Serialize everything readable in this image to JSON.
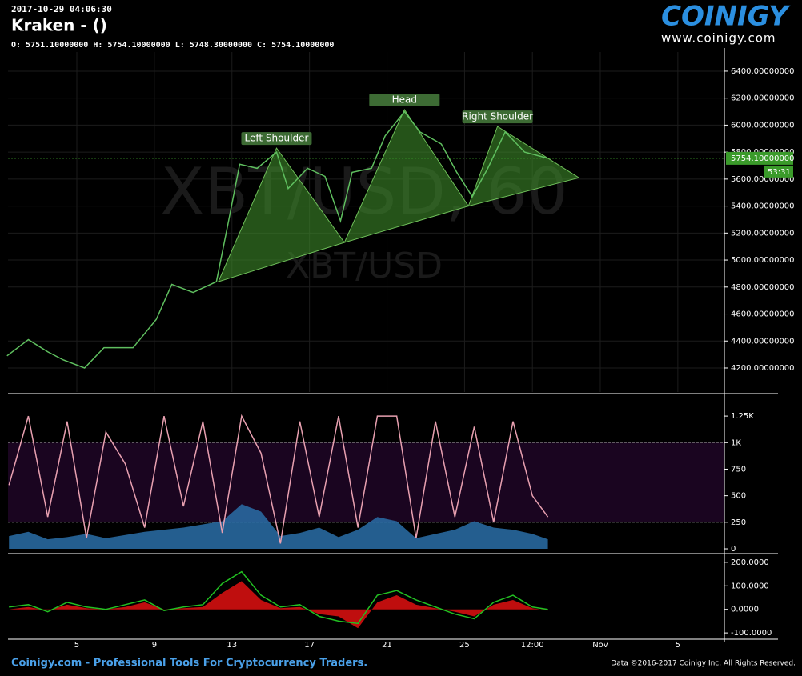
{
  "header": {
    "timestamp": "2017-10-29 04:06:30",
    "title": "Kraken -  ()",
    "ohlc": "O: 5751.10000000 H: 5754.10000000 L: 5748.30000000 C: 5754.10000000"
  },
  "logo": {
    "name": "COINIGY",
    "url": "www.coinigy.com"
  },
  "footer": {
    "left": "Coinigy.com - Professional Tools For Cryptocurrency Traders.",
    "right": "Data ©2016-2017 Coinigy Inc. All Rights Reserved."
  },
  "chart_data": [
    {
      "type": "line",
      "color": "#5fbf5f",
      "grid": true,
      "watermark": [
        "XBT/USD, 60",
        "XBT/USD"
      ],
      "x": [
        1.4,
        2.5,
        3.5,
        4.3,
        5.4,
        6.4,
        7.9,
        9.1,
        9.9,
        11.0,
        12.2,
        12.8,
        13.4,
        14.3,
        15.3,
        15.9,
        16.9,
        17.8,
        18.6,
        19.2,
        20.2,
        20.9,
        21.9,
        22.7,
        23.8,
        24.6,
        25.4,
        26.2,
        27.1,
        28.1,
        29.3
      ],
      "values": [
        4290,
        4410,
        4320,
        4260,
        4200,
        4350,
        4350,
        4560,
        4820,
        4760,
        4840,
        5270,
        5710,
        5680,
        5800,
        5530,
        5680,
        5620,
        5290,
        5650,
        5680,
        5920,
        6100,
        5950,
        5860,
        5650,
        5470,
        5680,
        5950,
        5800,
        5754
      ],
      "xlim": [
        1.45,
        38.4
      ],
      "ylim": [
        4022,
        6542
      ],
      "yticks": [
        {
          "value": 4200,
          "label": "4200.00000000"
        },
        {
          "value": 4400,
          "label": "4400.00000000"
        },
        {
          "value": 4600,
          "label": "4600.00000000"
        },
        {
          "value": 4800,
          "label": "4800.00000000"
        },
        {
          "value": 5000,
          "label": "5000.00000000"
        },
        {
          "value": 5200,
          "label": "5200.00000000"
        },
        {
          "value": 5400,
          "label": "5400.00000000"
        },
        {
          "value": 5600,
          "label": "5600.00000000"
        },
        {
          "value": 5800,
          "label": "5800.00000000"
        },
        {
          "value": 6000,
          "label": "6000.00000000"
        },
        {
          "value": 6200,
          "label": "6200.00000000"
        },
        {
          "value": 6400,
          "label": "6400.00000000"
        }
      ],
      "last_price": {
        "value": 5754.1,
        "label": "5754.10000000"
      },
      "countdown": "53:31",
      "pattern": {
        "color": "#3d8a2a",
        "x": [
          12.3,
          15.3,
          18.8,
          21.9,
          25.2,
          26.7,
          30.9
        ],
        "y": [
          4840,
          5830,
          5130,
          6115,
          5400,
          5990,
          5610
        ],
        "labels": [
          "Left Shoulder",
          "Head",
          "Right Shoulder"
        ]
      }
    },
    {
      "type": "oscillator",
      "grid": false,
      "band": [
        250,
        1000
      ],
      "band_color": "#1a0520",
      "x": [
        1.5,
        2.5,
        3.5,
        4.5,
        5.5,
        6.5,
        7.5,
        8.5,
        9.5,
        10.5,
        11.5,
        12.5,
        13.5,
        14.5,
        15.5,
        16.5,
        17.5,
        18.5,
        19.5,
        20.5,
        21.5,
        22.5,
        23.5,
        24.5,
        25.5,
        26.5,
        27.5,
        28.5,
        29.3
      ],
      "series": [
        {
          "color": "#2a6fa8",
          "style": "area",
          "values": [
            120,
            160,
            90,
            110,
            140,
            100,
            130,
            160,
            180,
            200,
            230,
            260,
            420,
            350,
            120,
            150,
            200,
            110,
            180,
            300,
            260,
            100,
            140,
            180,
            260,
            200,
            180,
            140,
            90
          ]
        },
        {
          "color": "#e8a0b0",
          "style": "line",
          "values": [
            600,
            1250,
            300,
            1200,
            100,
            1100,
            800,
            200,
            1250,
            400,
            1200,
            150,
            1250,
            900,
            50,
            1200,
            300,
            1250,
            200,
            1250,
            1250,
            100,
            1200,
            300,
            1150,
            250,
            1200,
            500,
            300
          ]
        }
      ],
      "xlim": [
        1.45,
        38.4
      ],
      "ylim": [
        -30,
        1424
      ],
      "yticks": [
        0,
        250,
        500,
        750,
        {
          "value": 1000,
          "label": "1K"
        },
        {
          "value": 1250,
          "label": "1.25K"
        }
      ]
    },
    {
      "type": "oscillator",
      "grid": false,
      "x": [
        1.5,
        2.5,
        3.5,
        4.5,
        5.5,
        6.5,
        7.5,
        8.5,
        9.5,
        10.5,
        11.5,
        12.5,
        13.5,
        14.5,
        15.5,
        16.5,
        17.5,
        18.5,
        19.5,
        20.5,
        21.5,
        22.5,
        23.5,
        24.5,
        25.5,
        26.5,
        27.5,
        28.5,
        29.3
      ],
      "series": [
        {
          "color": "#e01010",
          "style": "area",
          "values": [
            0,
            10,
            -5,
            20,
            5,
            0,
            10,
            30,
            0,
            5,
            10,
            70,
            120,
            40,
            5,
            10,
            -20,
            -30,
            -80,
            30,
            60,
            20,
            5,
            -10,
            -30,
            20,
            40,
            5,
            -5
          ]
        },
        {
          "color": "#22c022",
          "style": "line",
          "values": [
            10,
            20,
            -10,
            30,
            10,
            0,
            20,
            40,
            -5,
            10,
            20,
            110,
            160,
            60,
            10,
            20,
            -30,
            -50,
            -60,
            60,
            80,
            40,
            10,
            -20,
            -40,
            30,
            60,
            10,
            0
          ]
        }
      ],
      "xlim": [
        1.45,
        38.4
      ],
      "ylim": [
        -120,
        220
      ],
      "yticks": [
        {
          "value": -100,
          "label": "-100.0000"
        },
        {
          "value": 0,
          "label": "0.0000"
        },
        {
          "value": 100,
          "label": "100.0000"
        },
        {
          "value": 200,
          "label": "200.0000"
        }
      ],
      "xticks": [
        5,
        9,
        13,
        17,
        21,
        25,
        {
          "value": 28.5,
          "label": "12:00"
        },
        {
          "value": 32,
          "label": "Nov"
        },
        {
          "value": 36,
          "label": "5"
        }
      ]
    }
  ]
}
